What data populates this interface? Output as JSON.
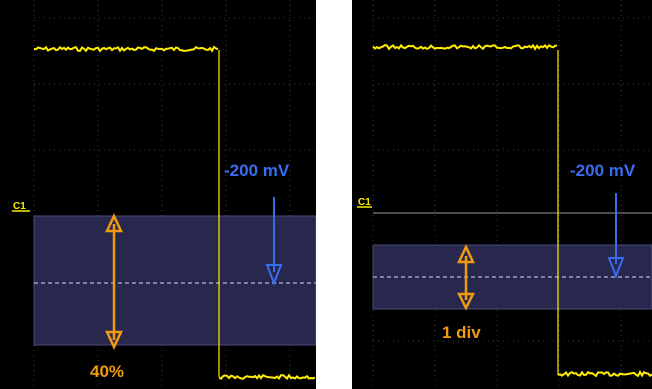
{
  "colors": {
    "background": "#000000",
    "grid": "#3c3c3c",
    "trace": "#ffee00",
    "trace_light": "#ffffa0",
    "band_fill": "#28284e",
    "band_edge": "#4a4a7a",
    "dashed_line": "#d8d8ff",
    "orange": "#f09a10",
    "blue": "#3a6cf0"
  },
  "panels": [
    {
      "channel_label": "C1",
      "offset_label": "-200 mV",
      "range_label": "40%",
      "ground_level": "hidden-by-band"
    },
    {
      "channel_label": "C1",
      "offset_label": "-200 mV",
      "range_label": "1 div",
      "ground_level": "visible"
    }
  ]
}
